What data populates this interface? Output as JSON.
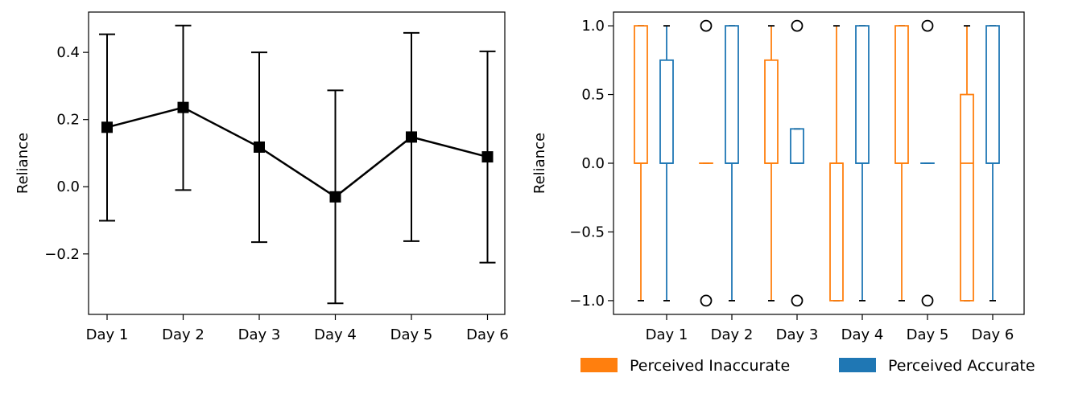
{
  "chart_data": [
    {
      "type": "line",
      "title": "",
      "xlabel": "",
      "ylabel": "Reliance",
      "categories": [
        "Day 1",
        "Day 2",
        "Day 3",
        "Day 4",
        "Day 5",
        "Day 6"
      ],
      "ylim": [
        -0.38,
        0.52
      ],
      "yticks": [
        0.4,
        0.2,
        0.0,
        -0.2
      ],
      "ytick_labels": [
        "0.4",
        "0.2",
        "0.0",
        "−0.2"
      ],
      "series": [
        {
          "name": "Reliance",
          "values": [
            0.177,
            0.236,
            0.118,
            -0.03,
            0.148,
            0.089
          ],
          "err_low": [
            -0.101,
            -0.01,
            -0.165,
            -0.347,
            -0.162,
            -0.226
          ],
          "err_high": [
            0.454,
            0.48,
            0.4,
            0.287,
            0.458,
            0.403
          ],
          "color": "#000000",
          "marker": "square"
        }
      ]
    },
    {
      "type": "box",
      "title": "",
      "xlabel": "",
      "ylabel": "Reliance",
      "categories": [
        "Day 1",
        "Day 2",
        "Day 3",
        "Day 4",
        "Day 5",
        "Day 6"
      ],
      "ylim": [
        -1.1,
        1.1
      ],
      "yticks": [
        1.0,
        0.5,
        0.0,
        -0.5,
        -1.0
      ],
      "ytick_labels": [
        "1.0",
        "0.5",
        "0.0",
        "−0.5",
        "−1.0"
      ],
      "legend_position": "bottom",
      "series": [
        {
          "name": "Perceived Inaccurate",
          "color": "#ff7f0e",
          "boxes": [
            {
              "whislo": -1,
              "q1": 0,
              "med": 0,
              "q3": 1,
              "whishi": 1,
              "fliers": []
            },
            {
              "whislo": 0,
              "q1": 0,
              "med": 0,
              "q3": 0,
              "whishi": 0,
              "fliers": [
                1,
                -1
              ]
            },
            {
              "whislo": -1,
              "q1": 0,
              "med": 0,
              "q3": 0.75,
              "whishi": 1,
              "fliers": []
            },
            {
              "whislo": -1,
              "q1": -1,
              "med": 0,
              "q3": 0,
              "whishi": 1,
              "fliers": []
            },
            {
              "whislo": -1,
              "q1": 0,
              "med": 0,
              "q3": 1,
              "whishi": 1,
              "fliers": []
            },
            {
              "whislo": -1,
              "q1": -1,
              "med": 0,
              "q3": 0.5,
              "whishi": 1,
              "fliers": []
            }
          ]
        },
        {
          "name": "Perceived Accurate",
          "color": "#1f77b4",
          "boxes": [
            {
              "whislo": -1,
              "q1": 0,
              "med": 0,
              "q3": 0.75,
              "whishi": 1,
              "fliers": []
            },
            {
              "whislo": -1,
              "q1": 0,
              "med": 0,
              "q3": 1,
              "whishi": 1,
              "fliers": []
            },
            {
              "whislo": 0,
              "q1": 0,
              "med": 0,
              "q3": 0.25,
              "whishi": 0.25,
              "fliers": [
                1,
                -1
              ]
            },
            {
              "whislo": -1,
              "q1": 0,
              "med": 0,
              "q3": 1,
              "whishi": 1,
              "fliers": []
            },
            {
              "whislo": 0,
              "q1": 0,
              "med": 0,
              "q3": 0,
              "whishi": 0,
              "fliers": [
                1,
                -1
              ]
            },
            {
              "whislo": -1,
              "q1": 0,
              "med": 0,
              "q3": 1,
              "whishi": 1,
              "fliers": []
            }
          ]
        }
      ]
    }
  ]
}
